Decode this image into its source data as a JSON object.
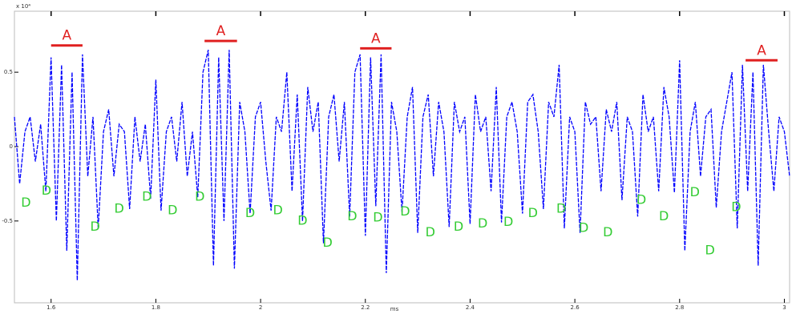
{
  "chart_data": {
    "type": "line",
    "y_multiplier": "x 10⁴",
    "x_label": "ms",
    "color": "#0000ff",
    "xlim": [
      1.53,
      3.01
    ],
    "ylim": [
      -1.05,
      0.91
    ],
    "xticks": [
      1.6,
      1.8,
      2,
      2.2,
      2.4,
      2.6,
      2.8,
      3
    ],
    "yticks": [
      0.5,
      0,
      -0.5
    ],
    "x": [
      1.53,
      1.54,
      1.55,
      1.56,
      1.57,
      1.58,
      1.59,
      1.6,
      1.61,
      1.62,
      1.63,
      1.64,
      1.65,
      1.66,
      1.67,
      1.68,
      1.69,
      1.7,
      1.71,
      1.72,
      1.73,
      1.74,
      1.75,
      1.76,
      1.77,
      1.78,
      1.79,
      1.8,
      1.81,
      1.82,
      1.83,
      1.84,
      1.85,
      1.86,
      1.87,
      1.88,
      1.89,
      1.9,
      1.91,
      1.92,
      1.93,
      1.94,
      1.95,
      1.96,
      1.97,
      1.98,
      1.99,
      2,
      2.01,
      2.02,
      2.03,
      2.04,
      2.05,
      2.06,
      2.07,
      2.08,
      2.09,
      2.1,
      2.11,
      2.12,
      2.13,
      2.14,
      2.15,
      2.16,
      2.17,
      2.18,
      2.19,
      2.2,
      2.21,
      2.22,
      2.23,
      2.24,
      2.25,
      2.26,
      2.27,
      2.28,
      2.29,
      2.3,
      2.31,
      2.32,
      2.33,
      2.34,
      2.35,
      2.36,
      2.37,
      2.38,
      2.39,
      2.4,
      2.41,
      2.42,
      2.43,
      2.44,
      2.45,
      2.46,
      2.47,
      2.48,
      2.49,
      2.5,
      2.51,
      2.52,
      2.53,
      2.54,
      2.55,
      2.56,
      2.57,
      2.58,
      2.59,
      2.6,
      2.61,
      2.62,
      2.63,
      2.64,
      2.65,
      2.66,
      2.67,
      2.68,
      2.69,
      2.7,
      2.71,
      2.72,
      2.73,
      2.74,
      2.75,
      2.76,
      2.77,
      2.78,
      2.79,
      2.8,
      2.81,
      2.82,
      2.83,
      2.84,
      2.85,
      2.86,
      2.87,
      2.88,
      2.89,
      2.9,
      2.91,
      2.92,
      2.93,
      2.94,
      2.95,
      2.96,
      2.97,
      2.98,
      2.99,
      3,
      3.01
    ],
    "values": [
      0.2,
      -0.25,
      0.1,
      0.2,
      -0.1,
      0.15,
      -0.3,
      0.6,
      -0.5,
      0.55,
      -0.7,
      0.5,
      -0.9,
      0.62,
      -0.2,
      0.2,
      -0.55,
      0.1,
      0.25,
      -0.2,
      0.15,
      0.1,
      -0.42,
      0.2,
      -0.1,
      0.15,
      -0.35,
      0.45,
      -0.43,
      0.1,
      0.2,
      -0.1,
      0.3,
      -0.2,
      0.1,
      -0.34,
      0.5,
      0.65,
      -0.8,
      0.6,
      -0.5,
      0.65,
      -0.82,
      0.3,
      0.1,
      -0.45,
      0.2,
      0.3,
      -0.1,
      -0.43,
      0.2,
      0.1,
      0.5,
      -0.3,
      0.35,
      -0.5,
      0.4,
      0.1,
      0.3,
      -0.65,
      0.2,
      0.35,
      -0.1,
      0.3,
      -0.47,
      0.5,
      0.62,
      -0.6,
      0.6,
      -0.4,
      0.62,
      -0.85,
      0.3,
      0.1,
      -0.44,
      0.2,
      0.4,
      -0.58,
      0.2,
      0.35,
      -0.2,
      0.3,
      0.1,
      -0.54,
      0.3,
      0.1,
      0.2,
      -0.52,
      0.35,
      0.1,
      0.2,
      -0.3,
      0.4,
      -0.51,
      0.2,
      0.3,
      0.1,
      -0.45,
      0.3,
      0.35,
      0.1,
      -0.42,
      0.3,
      0.2,
      0.55,
      -0.55,
      0.2,
      0.1,
      -0.58,
      0.3,
      0.15,
      0.2,
      -0.3,
      0.25,
      0.1,
      0.3,
      -0.36,
      0.2,
      0.1,
      -0.47,
      0.35,
      0.1,
      0.2,
      -0.3,
      0.4,
      0.2,
      -0.31,
      0.58,
      -0.7,
      0.1,
      0.3,
      -0.2,
      0.2,
      0.25,
      -0.41,
      0.1,
      0.3,
      0.5,
      -0.55,
      0.55,
      -0.3,
      0.5,
      -0.8,
      0.55,
      0.1,
      -0.3,
      0.2,
      0.1,
      -0.2
    ],
    "annotation_colors": {
      "A": "#e02020",
      "D": "#33cc33"
    },
    "annotations": [
      {
        "text": "A",
        "x": [
          1.6,
          1.66
        ],
        "y": 0.68
      },
      {
        "text": "A",
        "x": [
          1.893,
          1.955
        ],
        "y": 0.71
      },
      {
        "text": "A",
        "x": [
          2.19,
          2.25
        ],
        "y": 0.66
      },
      {
        "text": "A",
        "x": [
          2.926,
          2.987
        ],
        "y": 0.58
      },
      {
        "text": "D",
        "x": 1.552,
        "y": -0.38
      },
      {
        "text": "D",
        "x": 1.591,
        "y": -0.3
      },
      {
        "text": "D",
        "x": 1.684,
        "y": -0.54
      },
      {
        "text": "D",
        "x": 1.73,
        "y": -0.42
      },
      {
        "text": "D",
        "x": 1.783,
        "y": -0.34
      },
      {
        "text": "D",
        "x": 1.832,
        "y": -0.43
      },
      {
        "text": "D",
        "x": 1.884,
        "y": -0.34
      },
      {
        "text": "D",
        "x": 1.98,
        "y": -0.45
      },
      {
        "text": "D",
        "x": 2.033,
        "y": -0.43
      },
      {
        "text": "D",
        "x": 2.08,
        "y": -0.5
      },
      {
        "text": "D",
        "x": 2.128,
        "y": -0.65
      },
      {
        "text": "D",
        "x": 2.175,
        "y": -0.47
      },
      {
        "text": "D",
        "x": 2.224,
        "y": -0.48
      },
      {
        "text": "D",
        "x": 2.276,
        "y": -0.44
      },
      {
        "text": "D",
        "x": 2.324,
        "y": -0.58
      },
      {
        "text": "D",
        "x": 2.378,
        "y": -0.54
      },
      {
        "text": "D",
        "x": 2.424,
        "y": -0.52
      },
      {
        "text": "D",
        "x": 2.473,
        "y": -0.51
      },
      {
        "text": "D",
        "x": 2.52,
        "y": -0.45
      },
      {
        "text": "D",
        "x": 2.574,
        "y": -0.42
      },
      {
        "text": "D",
        "x": 2.617,
        "y": -0.55
      },
      {
        "text": "D",
        "x": 2.663,
        "y": -0.58
      },
      {
        "text": "D",
        "x": 2.727,
        "y": -0.36
      },
      {
        "text": "D",
        "x": 2.77,
        "y": -0.47
      },
      {
        "text": "D",
        "x": 2.829,
        "y": -0.31
      },
      {
        "text": "D",
        "x": 2.858,
        "y": -0.7
      },
      {
        "text": "D",
        "x": 2.908,
        "y": -0.41
      }
    ]
  }
}
